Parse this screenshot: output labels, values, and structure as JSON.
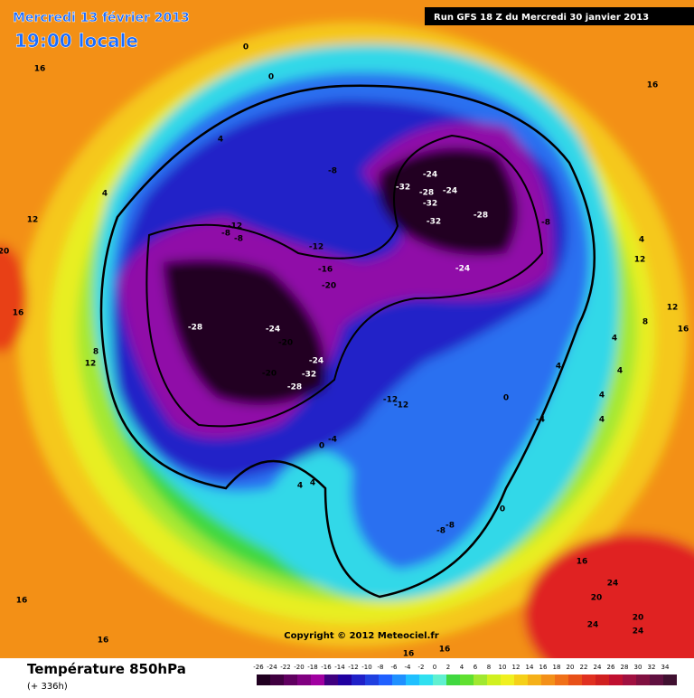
{
  "header": {
    "date": "Mercredi 13 février 2013",
    "time": "19:00 locale",
    "run": "Run GFS 18 Z du Mercredi 30 janvier 2013"
  },
  "map": {
    "copyright": "Copyright © 2012 Meteociel.fr",
    "contour_labels": [
      0,
      0,
      16,
      16,
      4,
      -8,
      4,
      12,
      -12,
      -8,
      -8,
      -12,
      -16,
      -20,
      20,
      16,
      8,
      12,
      -28,
      -24,
      -20,
      -24,
      -20,
      -32,
      -28,
      -24,
      -32,
      -28,
      -24,
      -32,
      -32,
      -28,
      -8,
      4,
      12,
      -24,
      12,
      8,
      16,
      4,
      4,
      4,
      0,
      -12,
      -12,
      4,
      -4,
      4,
      -4,
      0,
      4,
      4,
      0,
      -8,
      -8,
      16,
      16,
      24,
      20,
      20,
      24,
      24,
      16,
      16,
      16
    ]
  },
  "legend": {
    "title": "Température 850hPa",
    "lead_time": "(+ 336h)",
    "scale": [
      -26,
      -24,
      -22,
      -20,
      -18,
      -16,
      -14,
      -12,
      -10,
      -8,
      -6,
      -4,
      -2,
      0,
      2,
      4,
      6,
      8,
      10,
      12,
      14,
      16,
      18,
      20,
      22,
      24,
      26,
      28,
      30,
      32,
      34
    ]
  }
}
